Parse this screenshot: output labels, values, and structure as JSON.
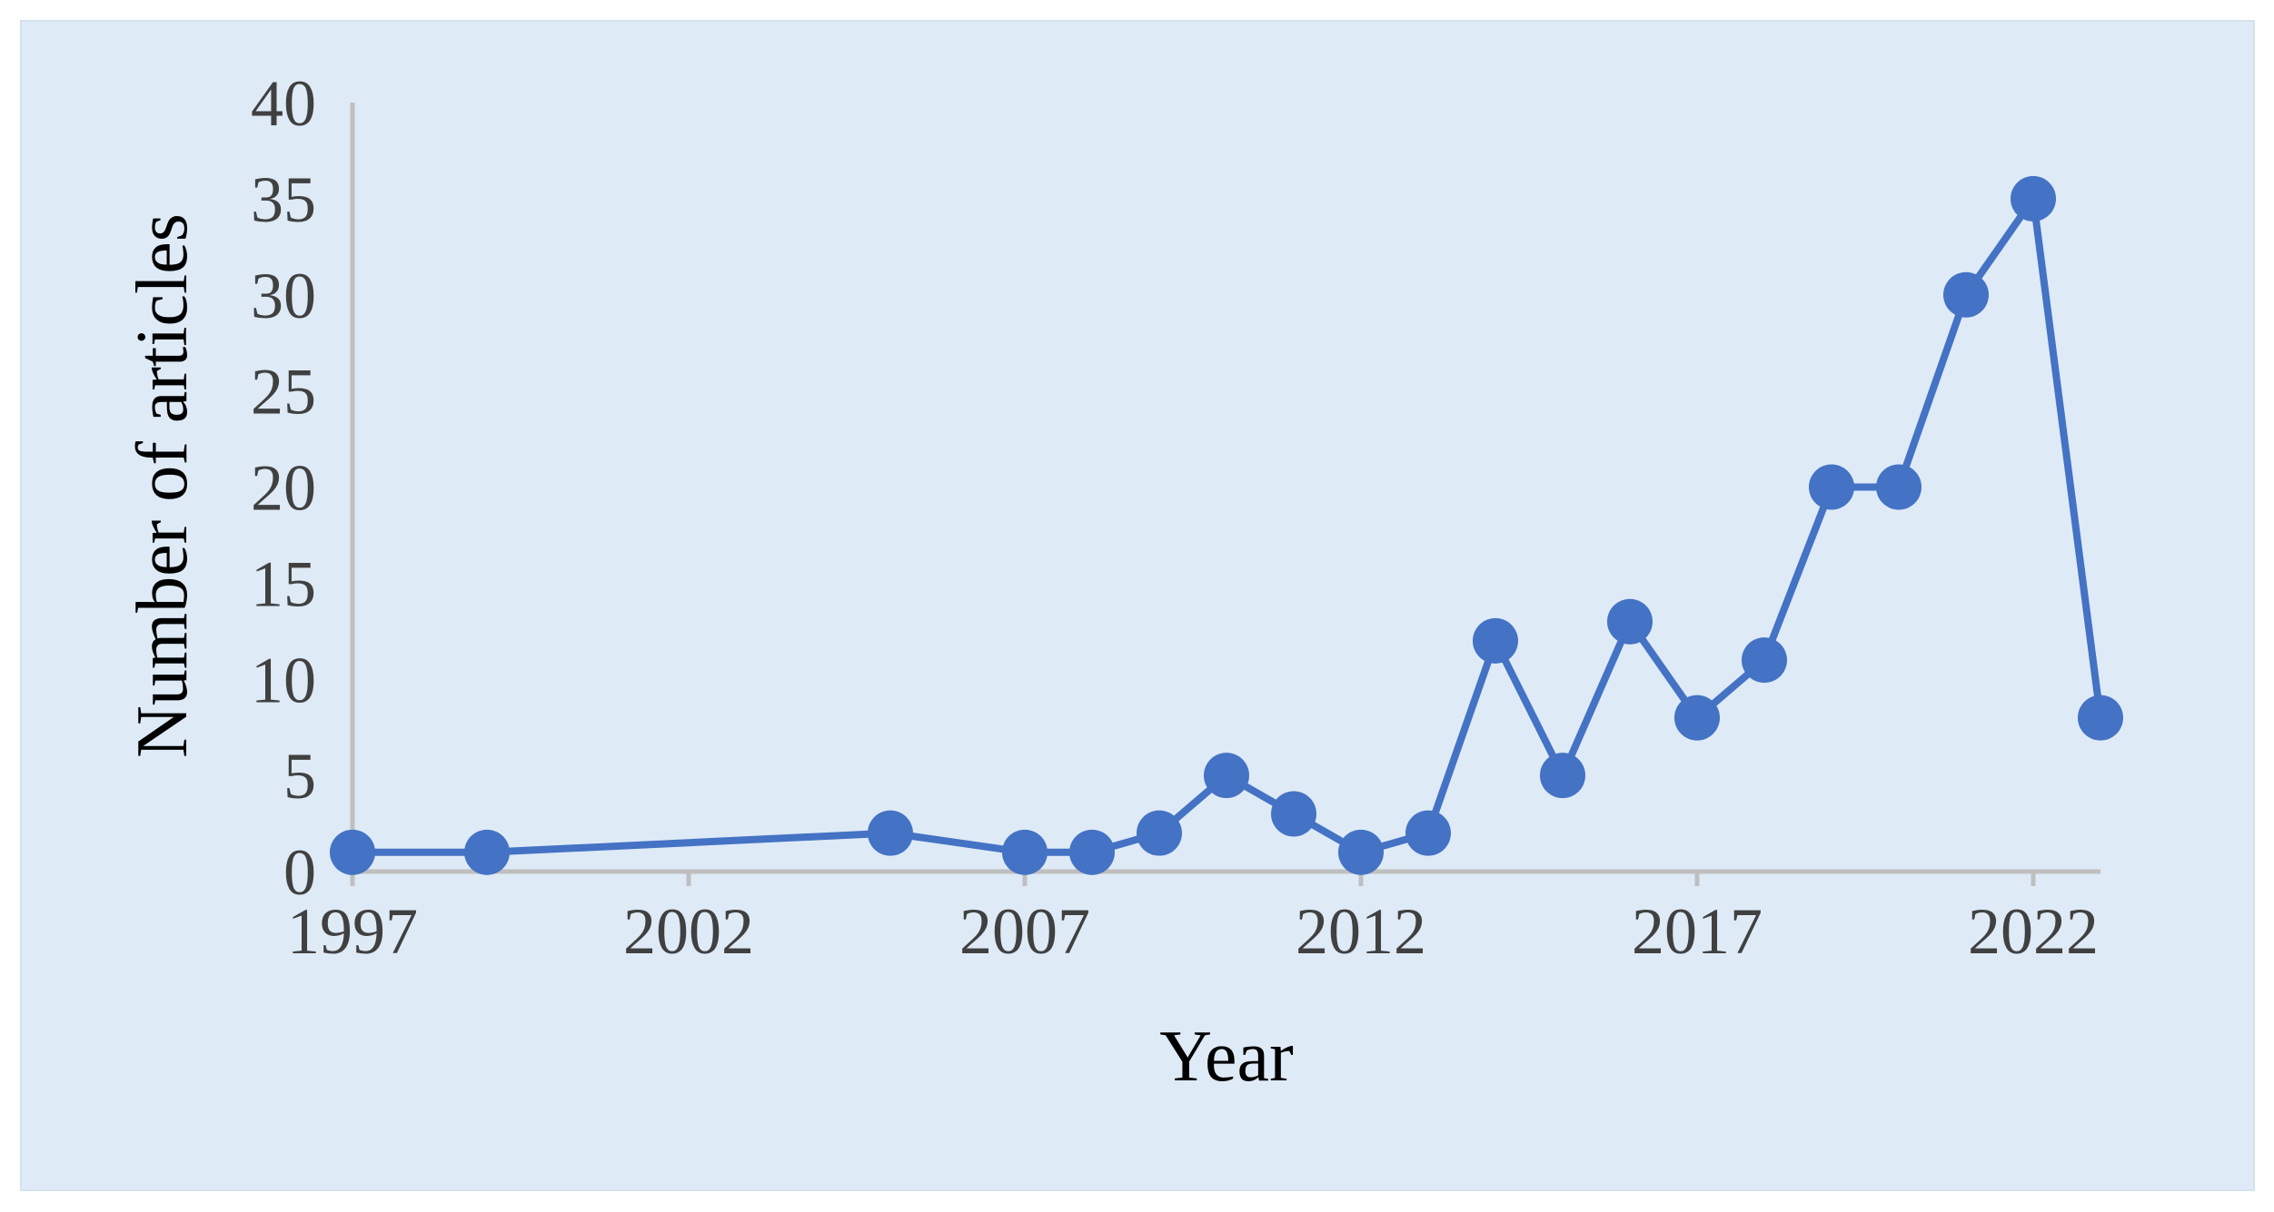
{
  "chart_data": {
    "type": "line",
    "title": "",
    "xlabel": "Year",
    "ylabel": "Number of articles",
    "xlim": [
      1997,
      2023
    ],
    "ylim": [
      0,
      40
    ],
    "x_ticks": [
      1997,
      2002,
      2007,
      2012,
      2017,
      2022
    ],
    "y_ticks": [
      0,
      5,
      10,
      15,
      20,
      25,
      30,
      35,
      40
    ],
    "grid": false,
    "legend": "none",
    "series": [
      {
        "color": "#4472c4",
        "points": [
          {
            "x": 1997,
            "y": 1
          },
          {
            "x": 1999,
            "y": 1
          },
          {
            "x": 2005,
            "y": 2
          },
          {
            "x": 2007,
            "y": 1
          },
          {
            "x": 2008,
            "y": 1
          },
          {
            "x": 2009,
            "y": 2
          },
          {
            "x": 2010,
            "y": 5
          },
          {
            "x": 2011,
            "y": 3
          },
          {
            "x": 2012,
            "y": 1
          },
          {
            "x": 2013,
            "y": 2
          },
          {
            "x": 2014,
            "y": 12
          },
          {
            "x": 2015,
            "y": 5
          },
          {
            "x": 2016,
            "y": 13
          },
          {
            "x": 2017,
            "y": 8
          },
          {
            "x": 2018,
            "y": 11
          },
          {
            "x": 2019,
            "y": 20
          },
          {
            "x": 2020,
            "y": 20
          },
          {
            "x": 2021,
            "y": 30
          },
          {
            "x": 2022,
            "y": 35
          },
          {
            "x": 2023,
            "y": 8
          }
        ]
      }
    ]
  },
  "colors": {
    "background": "#deeaf6",
    "axis": "#bfbfbf",
    "series": "#4472c4"
  }
}
